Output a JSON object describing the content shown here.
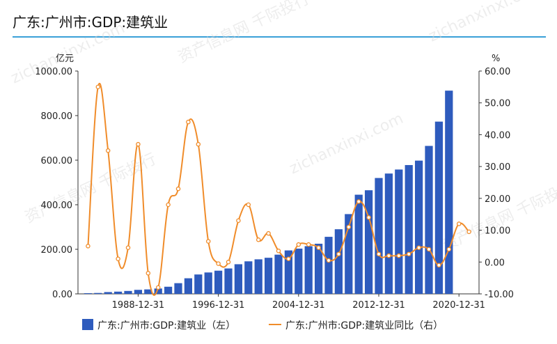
{
  "title": "广东:广州市:GDP:建筑业",
  "watermark": [
    "资产信息网 千际投行",
    "zichanxinxi.com"
  ],
  "colors": {
    "bar": "#2e5bbd",
    "line": "#f08c2a",
    "rule": "#3aa0d8"
  },
  "chart_data": {
    "type": "bar+line",
    "x": [
      1983,
      1984,
      1985,
      1986,
      1987,
      1988,
      1989,
      1990,
      1991,
      1992,
      1993,
      1994,
      1995,
      1996,
      1997,
      1998,
      1999,
      2000,
      2001,
      2002,
      2003,
      2004,
      2005,
      2006,
      2007,
      2008,
      2009,
      2010,
      2011,
      2012,
      2013,
      2014,
      2015,
      2016,
      2017,
      2018,
      2019,
      2020,
      2021
    ],
    "x_tick_labels": [
      "1988-12-31",
      "1996-12-31",
      "2004-12-31",
      "2012-12-31",
      "2020-12-31"
    ],
    "x_tick_years": [
      1988,
      1996,
      2004,
      2012,
      2020
    ],
    "left_unit": "亿元",
    "right_unit": "%",
    "left_ylim": [
      0,
      1000
    ],
    "right_ylim": [
      -10,
      60
    ],
    "left_ticks": [
      "0.00",
      "200.00",
      "400.00",
      "600.00",
      "800.00",
      "1000.00"
    ],
    "right_ticks": [
      "-10.00",
      "0.00",
      "10.00",
      "20.00",
      "30.00",
      "40.00",
      "50.00",
      "60.00"
    ],
    "series": [
      {
        "name": "广东:广州市:GDP:建筑业（左）",
        "type": "bar",
        "axis": "left",
        "values": [
          3,
          4,
          8,
          10,
          13,
          18,
          20,
          24,
          32,
          48,
          70,
          87,
          96,
          104,
          114,
          133,
          146,
          155,
          162,
          176,
          195,
          203,
          214,
          225,
          256,
          290,
          358,
          445,
          465,
          520,
          540,
          558,
          578,
          598,
          664,
          773,
          912,
          null,
          null
        ]
      },
      {
        "name": "广东:广州市:GDP:建筑业同比（右）",
        "type": "line",
        "axis": "right",
        "values": [
          5,
          55,
          35,
          1,
          4.5,
          37,
          -3.5,
          -8,
          18,
          23,
          44,
          37,
          6.5,
          -0.5,
          0,
          13,
          18,
          7,
          9,
          3.5,
          1,
          5.5,
          5.5,
          4.5,
          0.5,
          2.5,
          11,
          19,
          14,
          2.5,
          2,
          2,
          2.5,
          4.5,
          4,
          -1,
          4,
          12,
          9.5
        ]
      }
    ],
    "legend_position": "bottom"
  }
}
